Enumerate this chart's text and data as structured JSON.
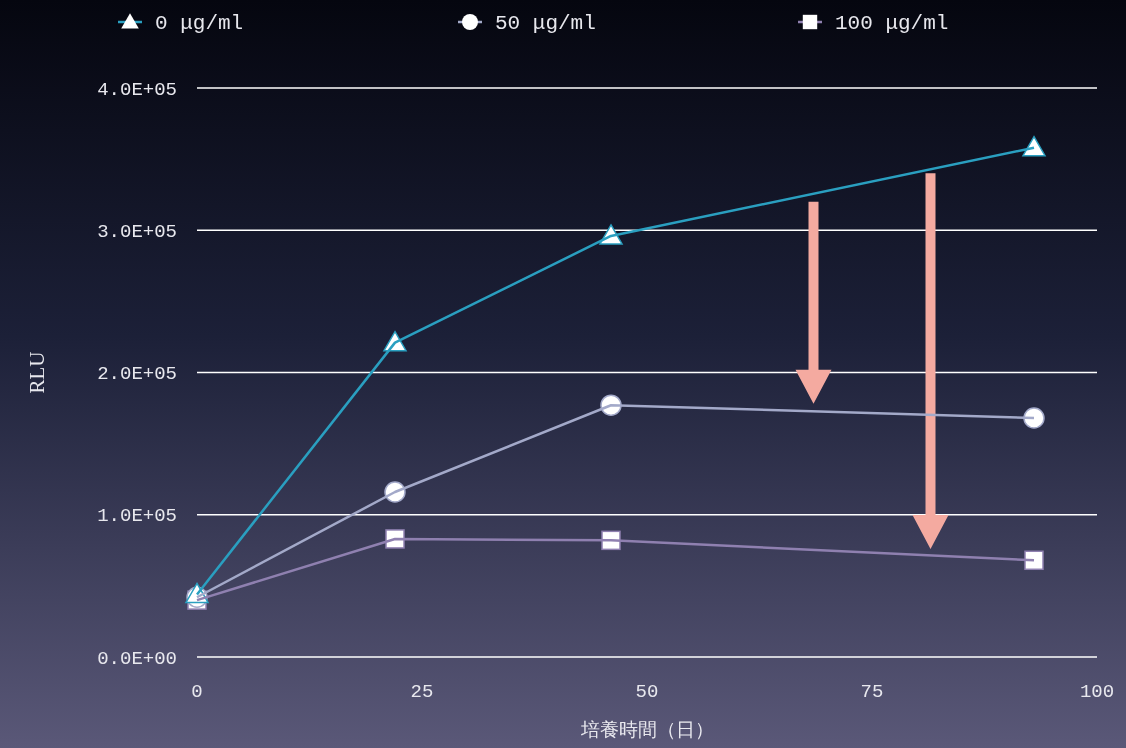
{
  "chart_data": {
    "type": "line",
    "xlabel": "培養時間（日）",
    "ylabel": "RLU",
    "xlim": [
      0,
      100
    ],
    "xticks": [
      0,
      25,
      50,
      75,
      100
    ],
    "ylim": [
      0,
      400000
    ],
    "yticks": [
      {
        "value": 0,
        "label": "0.0E+00"
      },
      {
        "value": 100000,
        "label": "1.0E+05"
      },
      {
        "value": 200000,
        "label": "2.0E+05"
      },
      {
        "value": 300000,
        "label": "3.0E+05"
      },
      {
        "value": 400000,
        "label": "4.0E+05"
      }
    ],
    "grid": "y",
    "legend": "top",
    "series": [
      {
        "name": "0 μg/ml",
        "color": "#2a9fc0",
        "marker": "triangle",
        "x": [
          0,
          22,
          46,
          93
        ],
        "values": [
          44000,
          221000,
          296000,
          358000
        ]
      },
      {
        "name": "50 μg/ml",
        "color": "#a3a9c9",
        "marker": "circle",
        "x": [
          0,
          22,
          46,
          93
        ],
        "values": [
          42000,
          116000,
          177000,
          168000
        ]
      },
      {
        "name": "100 μg/ml",
        "color": "#8f80b0",
        "marker": "square",
        "x": [
          0,
          22,
          46,
          93
        ],
        "values": [
          40000,
          83000,
          82000,
          68000
        ]
      }
    ]
  }
}
